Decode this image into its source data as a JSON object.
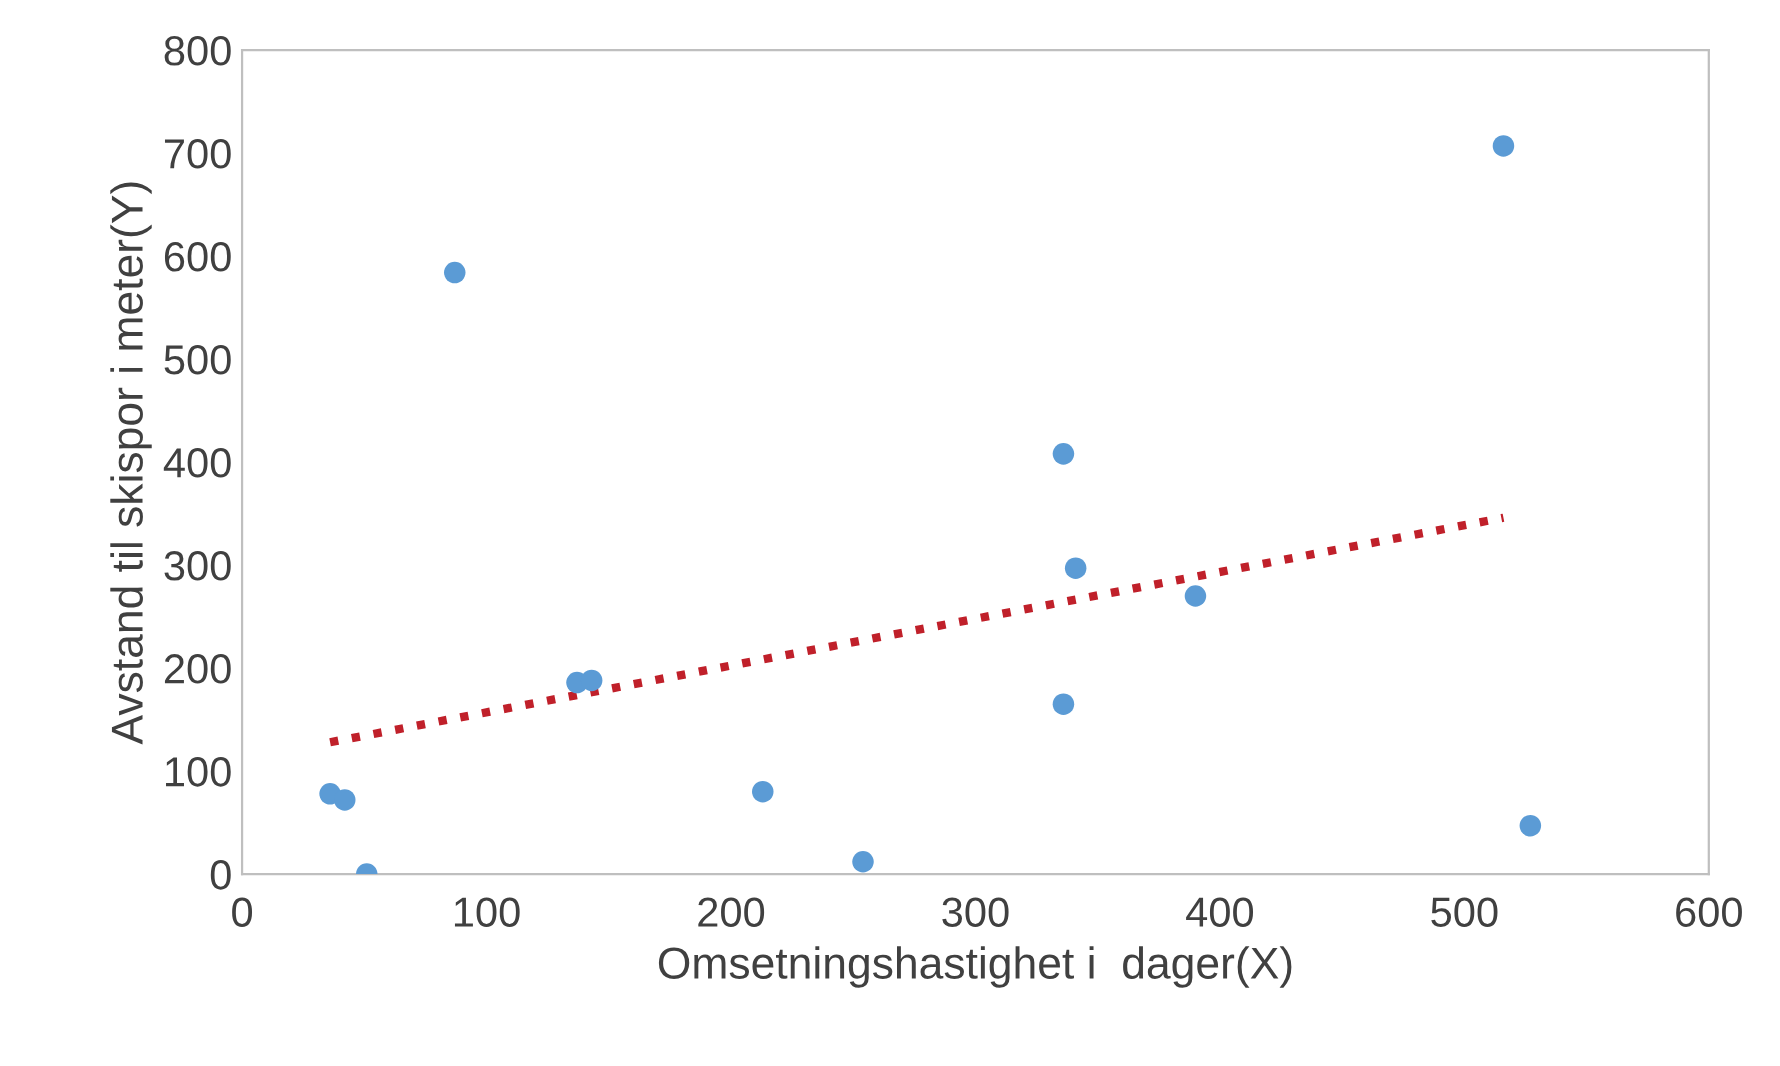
{
  "chart_data": {
    "type": "scatter",
    "xlabel": "Omsetningshastighet i  dager(X)",
    "ylabel": "Avstand til skispor i meter(Y)",
    "xlim": [
      0,
      600
    ],
    "xticks": [
      0,
      100,
      200,
      300,
      400,
      500,
      600
    ],
    "ylim": [
      0,
      800
    ],
    "yticks": [
      0,
      100,
      200,
      300,
      400,
      500,
      600,
      700,
      800
    ],
    "grid": false,
    "marker": "circle",
    "series": [
      {
        "color": "#5b9bd5",
        "x": [
          36,
          42,
          51,
          87,
          137,
          143,
          213,
          254,
          336,
          336,
          341,
          390,
          516,
          527
        ],
        "values": [
          78,
          72,
          0,
          584,
          186,
          188,
          80,
          12,
          408,
          165,
          297,
          270,
          707,
          47
        ]
      },
      {
        "type": "line",
        "color": "#c0202a",
        "line_style": "dotted",
        "marker": "none",
        "x": [
          36,
          516
        ],
        "values": [
          128,
          346
        ]
      }
    ]
  }
}
